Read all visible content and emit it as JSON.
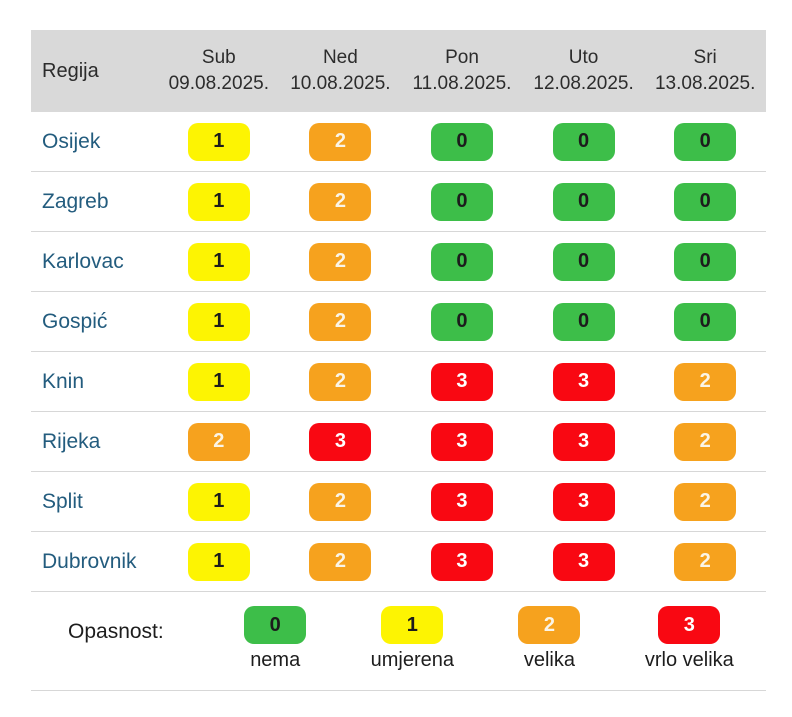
{
  "chart_data": {
    "type": "heatmap",
    "row_header": "Regija",
    "columns": [
      {
        "day": "Sub",
        "date": "09.08.2025."
      },
      {
        "day": "Ned",
        "date": "10.08.2025."
      },
      {
        "day": "Pon",
        "date": "11.08.2025."
      },
      {
        "day": "Uto",
        "date": "12.08.2025."
      },
      {
        "day": "Sri",
        "date": "13.08.2025."
      }
    ],
    "rows": [
      "Osijek",
      "Zagreb",
      "Karlovac",
      "Gospić",
      "Knin",
      "Rijeka",
      "Split",
      "Dubrovnik"
    ],
    "values": [
      [
        1,
        2,
        0,
        0,
        0
      ],
      [
        1,
        2,
        0,
        0,
        0
      ],
      [
        1,
        2,
        0,
        0,
        0
      ],
      [
        1,
        2,
        0,
        0,
        0
      ],
      [
        1,
        2,
        3,
        3,
        2
      ],
      [
        2,
        3,
        3,
        3,
        2
      ],
      [
        1,
        2,
        3,
        3,
        2
      ],
      [
        1,
        2,
        3,
        3,
        2
      ]
    ],
    "legend_label": "Opasnost:",
    "legend": [
      {
        "value": "0",
        "label": "nema"
      },
      {
        "value": "1",
        "label": "umjerena"
      },
      {
        "value": "2",
        "label": "velika"
      },
      {
        "value": "3",
        "label": "vrlo velika"
      }
    ]
  },
  "colors": {
    "0": {
      "bg": "#3dbe49",
      "text": "#1c1c1c"
    },
    "1": {
      "bg": "#fdf402",
      "text": "#1c1c1c"
    },
    "2": {
      "bg": "#f6a21e",
      "text": "#faf5e8"
    },
    "3": {
      "bg": "#f90812",
      "text": "#ffffff"
    },
    "header_bg": "#d9d9d9",
    "region_text": "#235c7e",
    "separator": "#d7d7d7"
  }
}
